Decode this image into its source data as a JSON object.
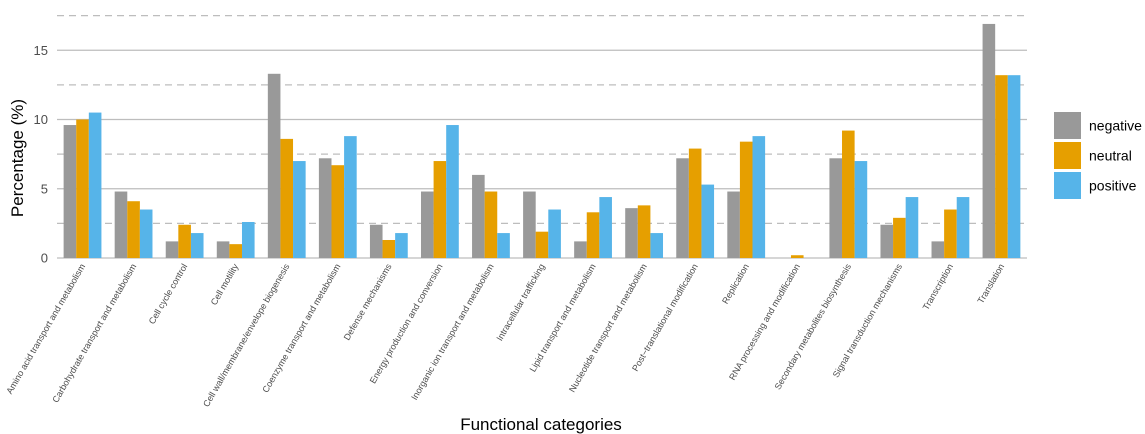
{
  "chart_data": {
    "type": "bar",
    "xlabel": "Functional categories",
    "ylabel": "Percentage (%)",
    "ylim": [
      0,
      17.5
    ],
    "yticks": [
      0,
      5,
      10,
      15
    ],
    "grid": true,
    "legend_position": "right",
    "categories": [
      "Amino acid transport and metabolism",
      "Carbohydrate transport and metabolism",
      "Cell cycle control",
      "Cell motility",
      "Cell wall/membrane/envelope biogenesis",
      "Coenzyme transport and metabolism",
      "Defense mechanisms",
      "Energy production and conversion",
      "Inorganic ion transport and metabolism",
      "Intracellular trafficking",
      "Lipid transport and metabolism",
      "Nucleotide transport and metabolism",
      "Post−translational modification",
      "Replication",
      "RNA processing and modification",
      "Secondary metabolites biosynthesis",
      "Signal transduction mechanisms",
      "Transcription",
      "Translation"
    ],
    "series": [
      {
        "name": "negative",
        "color": "#999999",
        "values": [
          9.6,
          4.8,
          1.2,
          1.2,
          13.3,
          7.2,
          2.4,
          4.8,
          6.0,
          4.8,
          1.2,
          3.6,
          7.2,
          4.8,
          0.0,
          7.2,
          2.4,
          1.2,
          16.9
        ]
      },
      {
        "name": "neutral",
        "color": "#E69F00",
        "values": [
          10.0,
          4.1,
          2.4,
          1.0,
          8.6,
          6.7,
          1.3,
          7.0,
          4.8,
          1.9,
          3.3,
          3.8,
          7.9,
          8.4,
          0.2,
          9.2,
          2.9,
          3.5,
          13.2
        ]
      },
      {
        "name": "positive",
        "color": "#56B4E9",
        "values": [
          10.5,
          3.5,
          1.8,
          2.6,
          7.0,
          8.8,
          1.8,
          9.6,
          1.8,
          3.5,
          4.4,
          1.8,
          5.3,
          8.8,
          0.0,
          7.0,
          4.4,
          4.4,
          13.2
        ]
      }
    ]
  }
}
